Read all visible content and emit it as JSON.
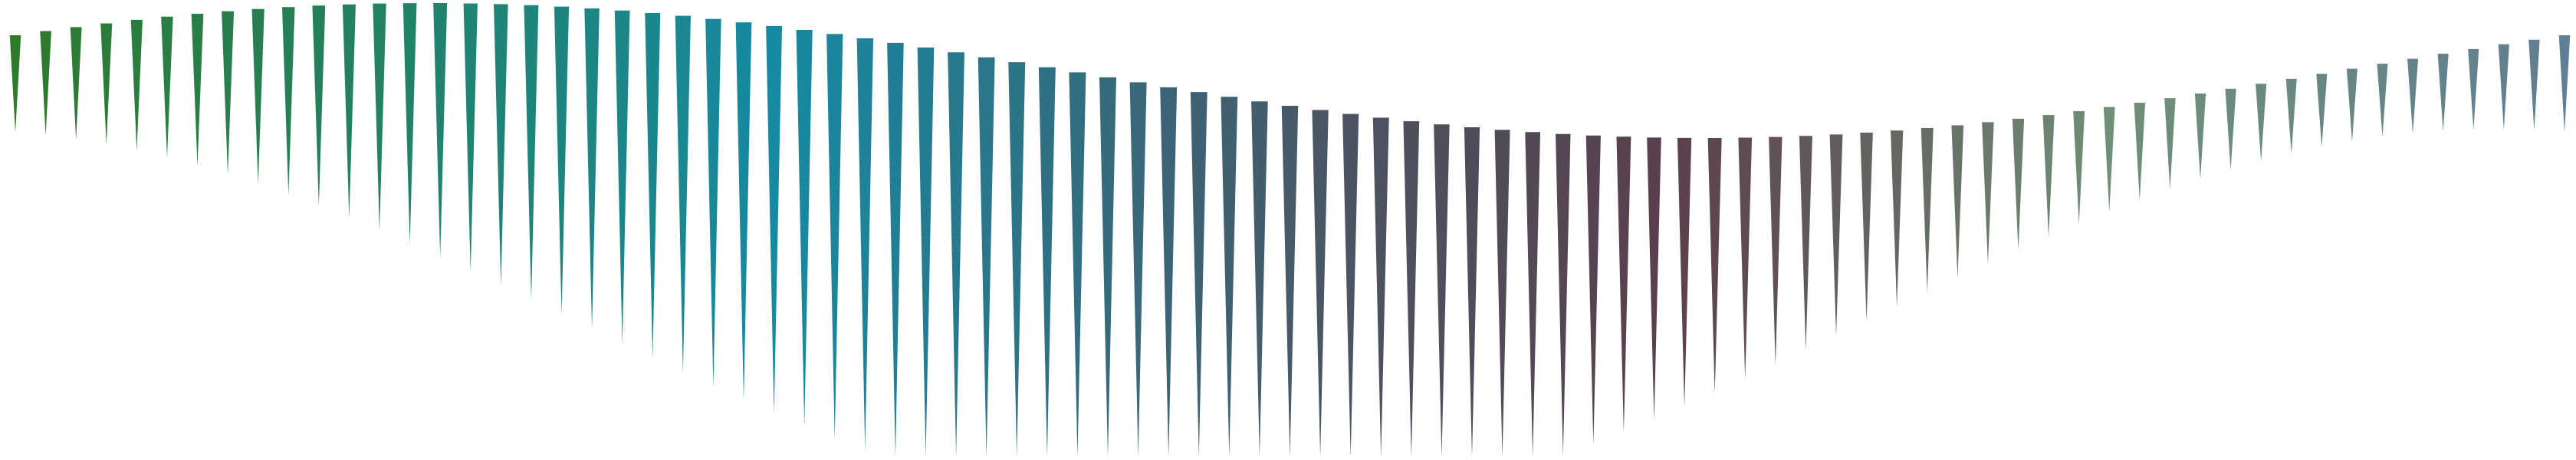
{
  "artwork": {
    "name": "wedge-wave-pattern",
    "count": 85,
    "style": "triangular spikes arranged in a wave",
    "palette": {
      "green": "#2f7a2b",
      "teal": "#168aa2",
      "slate": "#4b5563",
      "plum": "#5b3f4d",
      "sage": "#6f8f76",
      "steel": "#5f7f94"
    }
  }
}
